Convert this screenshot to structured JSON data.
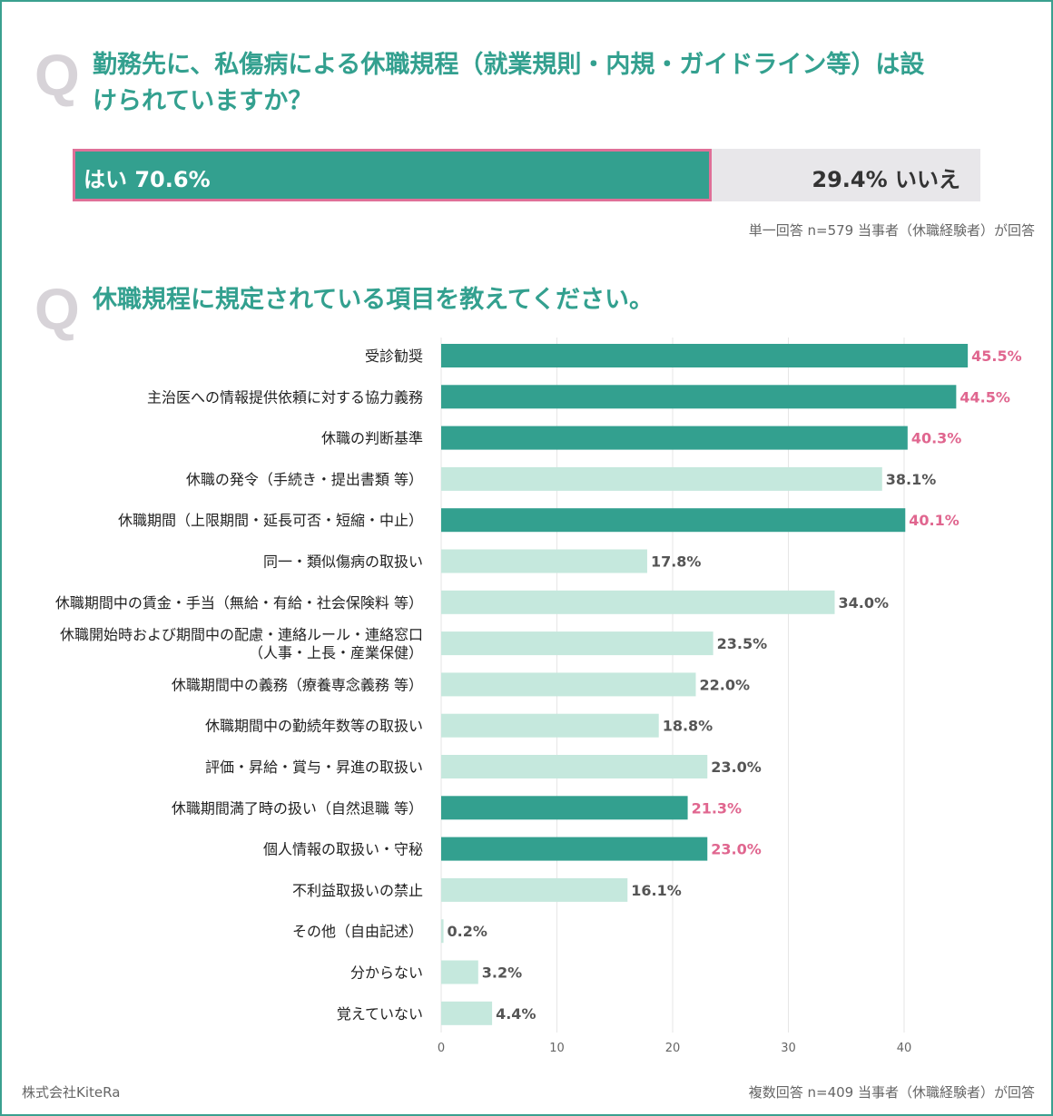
{
  "q1": {
    "mark": "Q",
    "title_line1": "勤務先に、私傷病による休職規程（就業規則・内規・ガイドライン等）は設",
    "title_line2": "けられていますか？",
    "yes_label": "はい 70.6%",
    "no_label": "29.4% いいえ",
    "yes_value": 70.6,
    "no_value": 29.4,
    "note": "単一回答 n=579 当事者（休職経験者）が回答"
  },
  "q2": {
    "mark": "Q",
    "title": "休職規程に規定されている項目を教えてください。",
    "note": "複数回答 n=409 当事者（休職経験者）が回答"
  },
  "credit": "株式会社KiteRa",
  "colors": {
    "highlight": "#33a08f",
    "normal": "#c5e8dd",
    "highlight_label": "#e0668f",
    "normal_label": "#555555",
    "frame": "#3aa08f"
  },
  "chart_data": {
    "type": "bar",
    "orientation": "horizontal",
    "categories": [
      "受診勧奨",
      "主治医への情報提供依頼に対する協力義務",
      "休職の判断基準",
      "休職の発令（手続き・提出書類 等）",
      "休職期間（上限期間・延長可否・短縮・中止）",
      "同一・類似傷病の取扱い",
      "休職期間中の賃金・手当（無給・有給・社会保険料 等）",
      "休職開始時および期間中の配慮・連絡ルール・連絡窓口\n（人事・上長・産業保健）",
      "休職期間中の義務（療養専念義務 等）",
      "休職期間中の勤続年数等の取扱い",
      "評価・昇給・賞与・昇進の取扱い",
      "休職期間満了時の扱い（自然退職 等）",
      "個人情報の取扱い・守秘",
      "不利益取扱いの禁止",
      "その他（自由記述）",
      "分からない",
      "覚えていない"
    ],
    "values": [
      45.5,
      44.5,
      40.3,
      38.1,
      40.1,
      17.8,
      34.0,
      23.5,
      22.0,
      18.8,
      23.0,
      21.3,
      23.0,
      16.1,
      0.2,
      3.2,
      4.4
    ],
    "data_labels": [
      "45.5%",
      "44.5%",
      "40.3%",
      "38.1%",
      "40.1%",
      "17.8%",
      "34.0%",
      "23.5%",
      "22.0%",
      "18.8%",
      "23.0%",
      "21.3%",
      "23.0%",
      "16.1%",
      "0.2%",
      "3.2%",
      "4.4%"
    ],
    "highlighted": [
      true,
      true,
      true,
      false,
      true,
      false,
      false,
      false,
      false,
      false,
      false,
      true,
      true,
      false,
      false,
      false,
      false
    ],
    "xlim": [
      0,
      46
    ],
    "xticks": [
      "0",
      "10",
      "20",
      "30",
      "40"
    ],
    "xtick_values": [
      0,
      10,
      20,
      30,
      40
    ],
    "grid": true
  }
}
